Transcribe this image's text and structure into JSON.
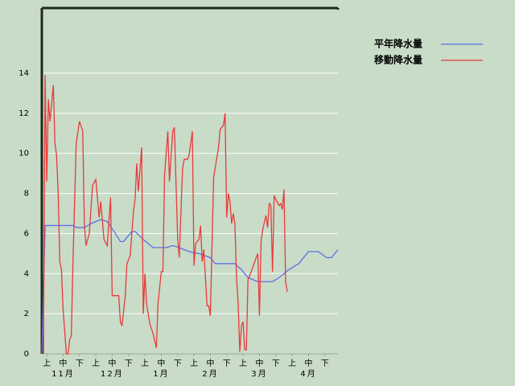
{
  "chart_data": {
    "type": "line",
    "xlim": [
      0,
      181
    ],
    "ylim": [
      0,
      17.25
    ],
    "yticks": [
      0,
      2,
      4,
      6,
      8,
      10,
      12,
      14
    ],
    "xticks": [
      {
        "value": 3,
        "label": "上"
      },
      {
        "value": 13,
        "label": "中"
      },
      {
        "value": 23,
        "label": "下"
      },
      {
        "value": 33,
        "label": "上"
      },
      {
        "value": 43,
        "label": "中"
      },
      {
        "value": 53,
        "label": "下"
      },
      {
        "value": 63,
        "label": "上"
      },
      {
        "value": 73,
        "label": "中"
      },
      {
        "value": 83,
        "label": "下"
      },
      {
        "value": 93,
        "label": "上"
      },
      {
        "value": 103,
        "label": "中"
      },
      {
        "value": 113,
        "label": "下"
      },
      {
        "value": 123,
        "label": "上"
      },
      {
        "value": 133,
        "label": "中"
      },
      {
        "value": 143,
        "label": "下"
      },
      {
        "value": 153,
        "label": "上"
      },
      {
        "value": 163,
        "label": "中"
      },
      {
        "value": 173,
        "label": "下"
      }
    ],
    "month_labels": [
      {
        "value": 13,
        "label": "11月"
      },
      {
        "value": 43,
        "label": "12月"
      },
      {
        "value": 73,
        "label": "1月"
      },
      {
        "value": 103,
        "label": "2月"
      },
      {
        "value": 133,
        "label": "3月"
      },
      {
        "value": 163,
        "label": "4月"
      }
    ],
    "grid": true,
    "legend": "upper right",
    "series": [
      {
        "name": "平年降水量",
        "color": "#5b6fe6",
        "x": [
          0,
          2,
          19,
          21,
          26,
          30,
          36,
          40,
          45,
          48,
          50,
          55,
          57,
          62,
          68,
          72,
          76,
          80,
          84,
          90,
          96,
          103,
          106,
          118,
          122,
          126,
          132,
          141,
          145,
          151,
          157,
          163,
          169,
          174,
          177,
          181
        ],
        "values": [
          0,
          6.4,
          6.4,
          6.3,
          6.3,
          6.5,
          6.7,
          6.6,
          6.0,
          5.6,
          5.6,
          6.1,
          6.1,
          5.7,
          5.3,
          5.3,
          5.3,
          5.4,
          5.3,
          5.1,
          5.0,
          4.8,
          4.5,
          4.5,
          4.2,
          3.8,
          3.6,
          3.6,
          3.8,
          4.2,
          4.5,
          5.1,
          5.1,
          4.8,
          4.8,
          5.2
        ]
      },
      {
        "name": "移動降水量",
        "color": "#e83a3a",
        "x": [
          1,
          2,
          3,
          4,
          5,
          7,
          8,
          9,
          10,
          11,
          12,
          13,
          15,
          16,
          17,
          18,
          19,
          21,
          23,
          25,
          26,
          27,
          29,
          31,
          33,
          35,
          36,
          38,
          40,
          42,
          43,
          47,
          48,
          49,
          51,
          52,
          54,
          56,
          57,
          58,
          59,
          61,
          62,
          63,
          64,
          66,
          68,
          70,
          71,
          73,
          74,
          75,
          77,
          78,
          80,
          81,
          83,
          84,
          86,
          87,
          89,
          90,
          92,
          93,
          94,
          96,
          97,
          98,
          99,
          101,
          102,
          103,
          105,
          106,
          108,
          109,
          111,
          112,
          113,
          114,
          115,
          116,
          117,
          118,
          119,
          120,
          121,
          122,
          123,
          124,
          125,
          126,
          128,
          131,
          132,
          133,
          134,
          135,
          137,
          138,
          139,
          140,
          141,
          142,
          143,
          145,
          146,
          147,
          148,
          149,
          150
        ],
        "values": [
          0,
          13.9,
          8.6,
          12.7,
          11.6,
          13.4,
          10.5,
          9.9,
          8.0,
          4.6,
          4.2,
          2.2,
          0,
          0,
          0.7,
          0.9,
          4.5,
          10.5,
          11.6,
          11.1,
          6.4,
          5.4,
          6.0,
          8.4,
          8.7,
          6.8,
          7.6,
          5.7,
          5.4,
          7.8,
          2.9,
          2.9,
          1.6,
          1.4,
          2.9,
          4.5,
          4.9,
          7.1,
          7.7,
          9.5,
          8.1,
          10.3,
          2.0,
          4.0,
          2.5,
          1.5,
          1.0,
          0.3,
          2.5,
          4.1,
          4.1,
          8.9,
          11.1,
          8.6,
          11.1,
          11.3,
          5.8,
          4.8,
          9.2,
          9.7,
          9.7,
          9.9,
          11.1,
          4.4,
          5.5,
          5.7,
          6.4,
          4.6,
          5.2,
          2.4,
          2.4,
          1.9,
          8.8,
          9.3,
          10.3,
          11.2,
          11.4,
          12.0,
          6.8,
          8.0,
          7.6,
          6.5,
          7.0,
          6.5,
          3.8,
          2.5,
          0.1,
          1.4,
          1.6,
          0.2,
          0.2,
          3.7,
          4.1,
          4.8,
          5.0,
          1.9,
          5.6,
          6.2,
          6.9,
          6.3,
          7.5,
          7.4,
          4.1,
          7.9,
          7.7,
          7.4,
          7.5,
          7.2,
          8.2,
          3.6,
          3.1
        ]
      }
    ]
  }
}
